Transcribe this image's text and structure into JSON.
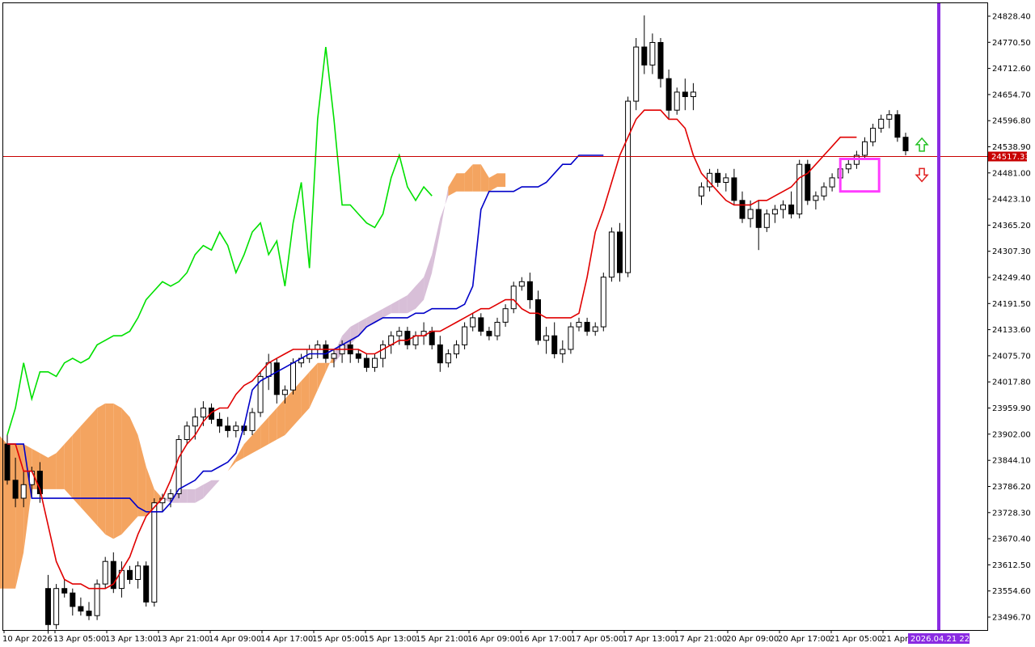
{
  "chart_data": {
    "type": "candlestick",
    "instrument": "",
    "price_axis": {
      "ylim": [
        23468,
        24857
      ],
      "tick_labels": [
        "24828.40",
        "24770.50",
        "24712.60",
        "24654.70",
        "24596.80",
        "24538.90",
        "24481.00",
        "24423.10",
        "24365.20",
        "24307.30",
        "24249.40",
        "24191.50",
        "24133.60",
        "24075.70",
        "24017.80",
        "23959.90",
        "23902.00",
        "23844.10",
        "23786.20",
        "23728.30",
        "23670.40",
        "23612.50",
        "23554.60",
        "23496.70"
      ]
    },
    "time_axis": {
      "tick_labels": [
        "10 Apr 2026",
        "13 Apr 05:00",
        "13 Apr 13:00",
        "13 Apr 21:00",
        "14 Apr 09:00",
        "14 Apr 17:00",
        "15 Apr 05:00",
        "15 Apr 13:00",
        "15 Apr 21:00",
        "16 Apr 09:00",
        "16 Apr 17:00",
        "17 Apr 05:00",
        "17 Apr 13:00",
        "17 Apr 21:00",
        "20 Apr 09:00",
        "20 Apr 17:00",
        "21 Apr 05:00",
        "21 Apr"
      ],
      "vertical_marker_label": "2026.04.21 22:00"
    },
    "current_price": "24517.33",
    "current_price_value": 24517.33,
    "ohlc": [
      [
        23880,
        23900,
        23790,
        23800
      ],
      [
        23800,
        23850,
        23740,
        23760
      ],
      [
        23760,
        23820,
        23740,
        23790
      ],
      [
        23790,
        23830,
        23760,
        23820
      ],
      [
        23820,
        23840,
        23750,
        23770
      ],
      [
        23560,
        23590,
        23460,
        23480
      ],
      [
        23480,
        23570,
        23470,
        23560
      ],
      [
        23560,
        23580,
        23540,
        23550
      ],
      [
        23550,
        23560,
        23500,
        23520
      ],
      [
        23520,
        23540,
        23500,
        23510
      ],
      [
        23510,
        23530,
        23490,
        23500
      ],
      [
        23500,
        23580,
        23490,
        23570
      ],
      [
        23570,
        23630,
        23560,
        23620
      ],
      [
        23620,
        23640,
        23550,
        23560
      ],
      [
        23560,
        23620,
        23540,
        23600
      ],
      [
        23600,
        23610,
        23570,
        23580
      ],
      [
        23580,
        23620,
        23560,
        23610
      ],
      [
        23610,
        23620,
        23520,
        23530
      ],
      [
        23530,
        23760,
        23520,
        23750
      ],
      [
        23750,
        23770,
        23730,
        23760
      ],
      [
        23760,
        23780,
        23740,
        23770
      ],
      [
        23770,
        23900,
        23760,
        23890
      ],
      [
        23890,
        23930,
        23880,
        23920
      ],
      [
        23920,
        23960,
        23890,
        23940
      ],
      [
        23940,
        23975,
        23920,
        23960
      ],
      [
        23960,
        23970,
        23925,
        23935
      ],
      [
        23935,
        23950,
        23905,
        23920
      ],
      [
        23920,
        23940,
        23895,
        23910
      ],
      [
        23910,
        23930,
        23895,
        23920
      ],
      [
        23920,
        23925,
        23900,
        23910
      ],
      [
        23910,
        23960,
        23900,
        23950
      ],
      [
        23950,
        24040,
        23940,
        24030
      ],
      [
        24030,
        24080,
        24000,
        24060
      ],
      [
        24060,
        24070,
        23970,
        23990
      ],
      [
        23990,
        24010,
        23970,
        24000
      ],
      [
        24000,
        24070,
        23990,
        24060
      ],
      [
        24060,
        24080,
        24050,
        24070
      ],
      [
        24070,
        24100,
        24060,
        24090
      ],
      [
        24090,
        24110,
        24070,
        24100
      ],
      [
        24100,
        24110,
        24060,
        24070
      ],
      [
        24070,
        24090,
        24050,
        24080
      ],
      [
        24080,
        24110,
        24060,
        24100
      ],
      [
        24100,
        24110,
        24060,
        24080
      ],
      [
        24080,
        24090,
        24060,
        24070
      ],
      [
        24070,
        24080,
        24040,
        24050
      ],
      [
        24050,
        24080,
        24040,
        24070
      ],
      [
        24070,
        24110,
        24050,
        24100
      ],
      [
        24100,
        24130,
        24080,
        24120
      ],
      [
        24120,
        24140,
        24100,
        24130
      ],
      [
        24130,
        24140,
        24090,
        24100
      ],
      [
        24100,
        24130,
        24090,
        24120
      ],
      [
        24120,
        24150,
        24100,
        24130
      ],
      [
        24130,
        24140,
        24090,
        24100
      ],
      [
        24100,
        24120,
        24040,
        24060
      ],
      [
        24060,
        24090,
        24050,
        24080
      ],
      [
        24080,
        24110,
        24070,
        24100
      ],
      [
        24100,
        24150,
        24090,
        24140
      ],
      [
        24140,
        24170,
        24130,
        24160
      ],
      [
        24160,
        24170,
        24120,
        24130
      ],
      [
        24130,
        24140,
        24110,
        24120
      ],
      [
        24120,
        24160,
        24110,
        24150
      ],
      [
        24150,
        24190,
        24140,
        24180
      ],
      [
        24180,
        24240,
        24170,
        24230
      ],
      [
        24230,
        24250,
        24220,
        24240
      ],
      [
        24240,
        24260,
        24180,
        24200
      ],
      [
        24200,
        24220,
        24100,
        24110
      ],
      [
        24110,
        24140,
        24080,
        24120
      ],
      [
        24120,
        24150,
        24070,
        24080
      ],
      [
        24080,
        24110,
        24060,
        24090
      ],
      [
        24090,
        24150,
        24080,
        24140
      ],
      [
        24140,
        24160,
        24130,
        24150
      ],
      [
        24150,
        24160,
        24120,
        24130
      ],
      [
        24130,
        24150,
        24120,
        24140
      ],
      [
        24140,
        24260,
        24130,
        24250
      ],
      [
        24250,
        24360,
        24240,
        24350
      ],
      [
        24350,
        24370,
        24240,
        24260
      ],
      [
        24260,
        24650,
        24250,
        24640
      ],
      [
        24640,
        24780,
        24620,
        24760
      ],
      [
        24760,
        24830,
        24700,
        24720
      ],
      [
        24720,
        24790,
        24700,
        24770
      ],
      [
        24770,
        24780,
        24670,
        24690
      ],
      [
        24690,
        24710,
        24600,
        24620
      ],
      [
        24620,
        24670,
        24610,
        24660
      ],
      [
        24660,
        24690,
        24620,
        24650
      ],
      [
        24650,
        24680,
        24620,
        24660
      ],
      [
        24430,
        24460,
        24410,
        24450
      ],
      [
        24450,
        24490,
        24440,
        24480
      ],
      [
        24480,
        24490,
        24450,
        24460
      ],
      [
        24460,
        24480,
        24440,
        24470
      ],
      [
        24470,
        24490,
        24410,
        24420
      ],
      [
        24420,
        24440,
        24370,
        24380
      ],
      [
        24380,
        24420,
        24360,
        24400
      ],
      [
        24400,
        24420,
        24310,
        24360
      ],
      [
        24360,
        24400,
        24350,
        24390
      ],
      [
        24390,
        24410,
        24370,
        24400
      ],
      [
        24400,
        24420,
        24380,
        24410
      ],
      [
        24410,
        24440,
        24380,
        24390
      ],
      [
        24390,
        24510,
        24380,
        24500
      ],
      [
        24500,
        24510,
        24410,
        24420
      ],
      [
        24420,
        24440,
        24400,
        24430
      ],
      [
        24430,
        24460,
        24420,
        24450
      ],
      [
        24450,
        24480,
        24440,
        24470
      ],
      [
        24470,
        24500,
        24460,
        24490
      ],
      [
        24490,
        24510,
        24480,
        24500
      ],
      [
        24500,
        24530,
        24490,
        24520
      ],
      [
        24520,
        24560,
        24510,
        24550
      ],
      [
        24550,
        24590,
        24540,
        24580
      ],
      [
        24580,
        24610,
        24570,
        24600
      ],
      [
        24600,
        24620,
        24580,
        24610
      ],
      [
        24610,
        24620,
        24550,
        24560
      ],
      [
        24560,
        24570,
        24520,
        24530
      ]
    ],
    "tenkan_sen": [
      23880,
      23880,
      23820,
      23820,
      23780,
      23700,
      23620,
      23580,
      23570,
      23570,
      23560,
      23560,
      23560,
      23570,
      23600,
      23630,
      23680,
      23720,
      23740,
      23760,
      23800,
      23850,
      23880,
      23900,
      23930,
      23950,
      23960,
      23960,
      23990,
      24010,
      24020,
      24040,
      24060,
      24070,
      24080,
      24090,
      24090,
      24090,
      24090,
      24090,
      24090,
      24090,
      24090,
      24090,
      24080,
      24080,
      24090,
      24100,
      24110,
      24110,
      24120,
      24120,
      24130,
      24130,
      24140,
      24150,
      24160,
      24170,
      24180,
      24180,
      24190,
      24200,
      24200,
      24180,
      24170,
      24170,
      24160,
      24160,
      24160,
      24160,
      24170,
      24250,
      24350,
      24400,
      24460,
      24520,
      24560,
      24600,
      24620,
      24620,
      24620,
      24600,
      24600,
      24580,
      24520,
      24480,
      24460,
      24440,
      24420,
      24410,
      24410,
      24410,
      24420,
      24420,
      24430,
      24440,
      24450,
      24470,
      24480,
      24500,
      24520,
      24540,
      24560,
      24560,
      24560
    ],
    "kijun_sen": [
      23880,
      23880,
      23880,
      23760,
      23760,
      23760,
      23760,
      23760,
      23760,
      23760,
      23760,
      23760,
      23760,
      23760,
      23760,
      23760,
      23740,
      23730,
      23730,
      23730,
      23750,
      23780,
      23790,
      23800,
      23820,
      23820,
      23830,
      23840,
      23860,
      23920,
      24000,
      24020,
      24030,
      24040,
      24050,
      24060,
      24070,
      24080,
      24080,
      24080,
      24090,
      24100,
      24110,
      24120,
      24140,
      24150,
      24160,
      24160,
      24160,
      24160,
      24170,
      24170,
      24180,
      24180,
      24180,
      24180,
      24190,
      24230,
      24400,
      24440,
      24440,
      24440,
      24440,
      24450,
      24450,
      24450,
      24460,
      24480,
      24500,
      24500,
      24520,
      24520,
      24520,
      24520
    ],
    "chikou_span": [
      23900,
      23960,
      24060,
      23980,
      24040,
      24040,
      24030,
      24060,
      24070,
      24060,
      24070,
      24100,
      24110,
      24120,
      24120,
      24130,
      24160,
      24200,
      24220,
      24240,
      24230,
      24240,
      24260,
      24300,
      24320,
      24310,
      24350,
      24320,
      24260,
      24300,
      24350,
      24370,
      24300,
      24330,
      24230,
      24370,
      24460,
      24270,
      24600,
      24760,
      24600,
      24410,
      24410,
      24390,
      24370,
      24360,
      24390,
      24470,
      24520,
      24450,
      24420,
      24450,
      24430
    ],
    "kumo": {
      "span_a": [
        23960,
        23960,
        23900,
        23900,
        23900,
        23880,
        23880,
        23880,
        23870,
        23860,
        23850,
        23860,
        23880,
        23900,
        23920,
        23940,
        23960,
        23970,
        23970,
        23960,
        23940,
        23900,
        23830,
        23780,
        23760,
        23750,
        23750,
        23750,
        23750,
        23760,
        23780,
        23800,
        23820,
        23850,
        23880,
        23900,
        23920,
        23940,
        23960,
        23980,
        24000,
        24020,
        24040,
        24060,
        24060,
        24060,
        24080,
        24100,
        24120,
        24140,
        24150,
        24160,
        24170,
        24170,
        24170,
        24180,
        24200,
        24260,
        24350,
        24450,
        24480,
        24480,
        24500,
        24500,
        24470,
        24480,
        24480
      ],
      "span_b": [
        23560,
        23560,
        23560,
        23560,
        23560,
        23560,
        23560,
        23640,
        23780,
        23780,
        23780,
        23780,
        23780,
        23760,
        23740,
        23720,
        23700,
        23680,
        23670,
        23680,
        23700,
        23720,
        23720,
        23740,
        23760,
        23760,
        23780,
        23780,
        23780,
        23790,
        23800,
        23800,
        23820,
        23840,
        23850,
        23860,
        23870,
        23880,
        23890,
        23900,
        23920,
        23940,
        23960,
        24000,
        24040,
        24080,
        24120,
        24140,
        24150,
        24160,
        24170,
        24180,
        24190,
        24200,
        24210,
        24230,
        24250,
        24300,
        24380,
        24430,
        24440,
        24440,
        24440,
        24440,
        24440,
        24450,
        24450
      ]
    },
    "signals": {
      "buy_arrow": "up",
      "sell_arrow": "down"
    },
    "colors": {
      "tenkan_sen": "#e00000",
      "kijun_sen": "#0000c8",
      "chikou_span": "#00e000",
      "kumo_bullish": "#f4a460",
      "kumo_bearish": "#d8bfd8",
      "current_price": "#c80000",
      "vertical_marker": "#8a2be2",
      "highlight_box": "#ff3cff"
    },
    "grid": false
  }
}
